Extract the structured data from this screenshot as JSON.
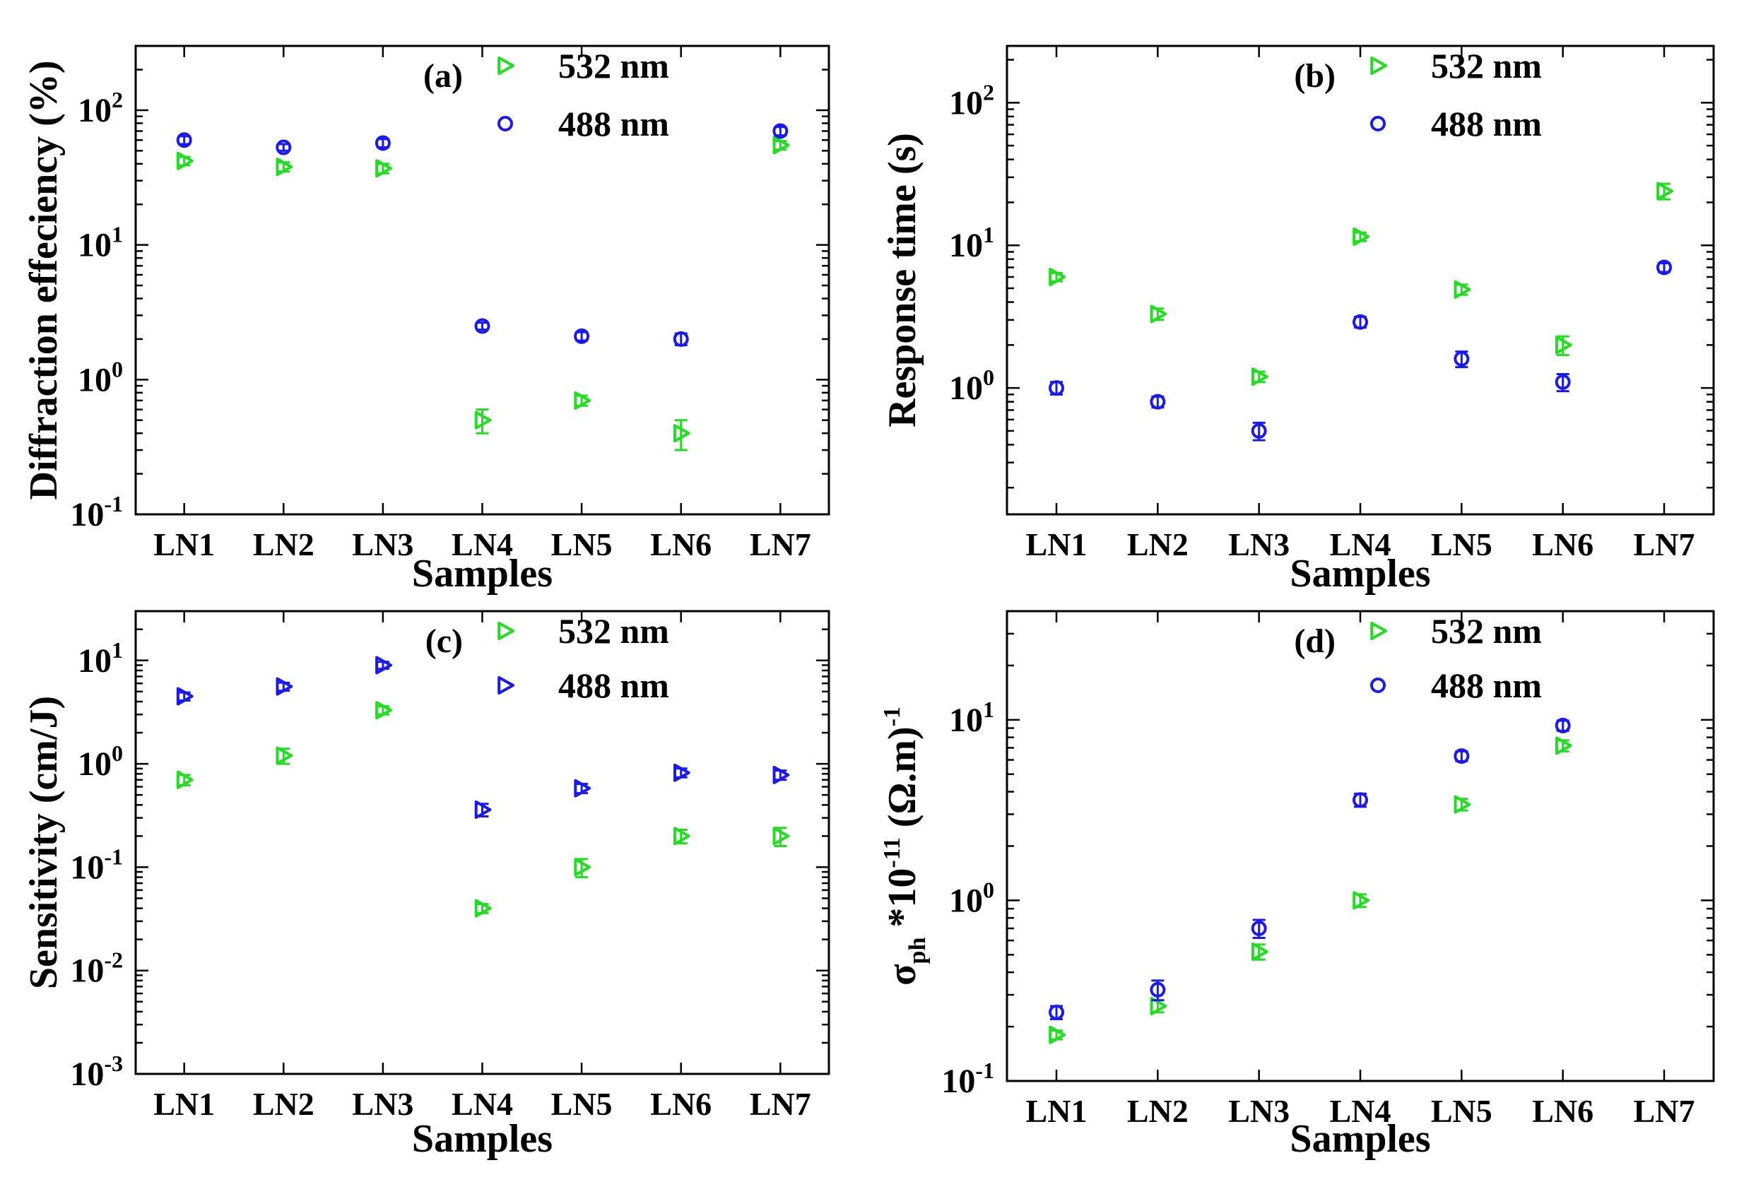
{
  "colors": {
    "green": "#22dd22",
    "blue": "#1a1aee"
  },
  "chart_data": [
    {
      "type": "scatter",
      "panel": "(a)",
      "title": "",
      "xlabel": "Samples",
      "ylabel": "Diffraction effeciency (%)",
      "yscale": "log",
      "ylim": [
        0.1,
        300
      ],
      "yticks": [
        {
          "base": "10",
          "exp": "-1",
          "value": 0.1
        },
        {
          "base": "10",
          "exp": "0",
          "value": 1
        },
        {
          "base": "10",
          "exp": "1",
          "value": 10
        },
        {
          "base": "10",
          "exp": "2",
          "value": 100
        }
      ],
      "categories": [
        "LN1",
        "LN2",
        "LN3",
        "LN4",
        "LN5",
        "LN6",
        "LN7"
      ],
      "series": [
        {
          "name": "532 nm",
          "marker": "triangle",
          "color": "green",
          "values": [
            42,
            38,
            37,
            0.5,
            0.7,
            0.4,
            55
          ],
          "errors": [
            3,
            3,
            3,
            0.1,
            0.06,
            0.1,
            4
          ]
        },
        {
          "name": "488 nm",
          "marker": "circle",
          "color": "blue",
          "values": [
            60,
            53,
            57,
            2.5,
            2.1,
            2.0,
            70
          ],
          "errors": [
            4,
            3,
            4,
            0.15,
            0.15,
            0.2,
            5
          ]
        }
      ],
      "legend": "top-center"
    },
    {
      "type": "scatter",
      "panel": "(b)",
      "title": "",
      "xlabel": "Samples",
      "ylabel": "Response time (s)",
      "yscale": "log",
      "ylim": [
        0.13,
        250
      ],
      "yticks": [
        {
          "base": "10",
          "exp": "0",
          "value": 1
        },
        {
          "base": "10",
          "exp": "1",
          "value": 10
        },
        {
          "base": "10",
          "exp": "2",
          "value": 100
        }
      ],
      "categories": [
        "LN1",
        "LN2",
        "LN3",
        "LN4",
        "LN5",
        "LN6",
        "LN7"
      ],
      "series": [
        {
          "name": "532 nm",
          "marker": "triangle",
          "color": "green",
          "values": [
            6,
            3.3,
            1.2,
            11.5,
            4.9,
            2.0,
            24
          ],
          "errors": [
            0.4,
            0.3,
            0.1,
            0.8,
            0.4,
            0.3,
            3
          ]
        },
        {
          "name": "488 nm",
          "marker": "circle",
          "color": "blue",
          "values": [
            1.0,
            0.8,
            0.5,
            2.9,
            1.6,
            1.1,
            7
          ],
          "errors": [
            0.1,
            0.07,
            0.07,
            0.25,
            0.2,
            0.15,
            0.5
          ]
        }
      ],
      "legend": "top-center"
    },
    {
      "type": "scatter",
      "panel": "(c)",
      "title": "",
      "xlabel": "Samples",
      "ylabel": "Sensitivity (cm/J)",
      "yscale": "log",
      "ylim": [
        0.001,
        30
      ],
      "yticks": [
        {
          "base": "10",
          "exp": "-3",
          "value": 0.001
        },
        {
          "base": "10",
          "exp": "-2",
          "value": 0.01
        },
        {
          "base": "10",
          "exp": "-1",
          "value": 0.1
        },
        {
          "base": "10",
          "exp": "0",
          "value": 1
        },
        {
          "base": "10",
          "exp": "1",
          "value": 10
        }
      ],
      "categories": [
        "LN1",
        "LN2",
        "LN3",
        "LN4",
        "LN5",
        "LN6",
        "LN7"
      ],
      "series": [
        {
          "name": "532 nm",
          "marker": "triangle",
          "color": "green",
          "values": [
            0.7,
            1.2,
            3.3,
            0.04,
            0.1,
            0.2,
            0.2
          ],
          "errors": [
            0.08,
            0.2,
            0.3,
            0.004,
            0.02,
            0.03,
            0.04
          ]
        },
        {
          "name": "488 nm",
          "marker": "triangle",
          "color": "blue",
          "values": [
            4.5,
            5.6,
            9.0,
            0.36,
            0.58,
            0.82,
            0.78
          ],
          "errors": [
            0.4,
            0.5,
            0.7,
            0.05,
            0.06,
            0.08,
            0.08
          ]
        }
      ],
      "legend": "top-center"
    },
    {
      "type": "scatter",
      "panel": "(d)",
      "title": "",
      "xlabel": "Samples",
      "ylabel": "σph *10-11 (Ω.m)-1",
      "ylabel_parts": {
        "sigma": "σ",
        "sub": "ph",
        "mult": " *10",
        "exp": "-11",
        "unit": " (Ω.m)",
        "unit_exp": "-1"
      },
      "yscale": "log",
      "ylim": [
        0.1,
        40
      ],
      "yticks": [
        {
          "base": "10",
          "exp": "-1",
          "value": 0.1
        },
        {
          "base": "10",
          "exp": "0",
          "value": 1
        },
        {
          "base": "10",
          "exp": "1",
          "value": 10
        }
      ],
      "categories": [
        "LN1",
        "LN2",
        "LN3",
        "LN4",
        "LN5",
        "LN6",
        "LN7"
      ],
      "series": [
        {
          "name": "532 nm",
          "marker": "triangle",
          "color": "green",
          "values": [
            0.18,
            0.26,
            0.52,
            1.0,
            3.4,
            7.2,
            null
          ],
          "errors": [
            0.01,
            0.02,
            0.05,
            0.08,
            0.25,
            0.5,
            null
          ]
        },
        {
          "name": "488 nm",
          "marker": "circle",
          "color": "blue",
          "values": [
            0.24,
            0.32,
            0.7,
            3.6,
            6.3,
            9.3,
            null
          ],
          "errors": [
            0.02,
            0.04,
            0.08,
            0.3,
            0.4,
            0.6,
            null
          ]
        }
      ],
      "legend": "top-center"
    }
  ]
}
